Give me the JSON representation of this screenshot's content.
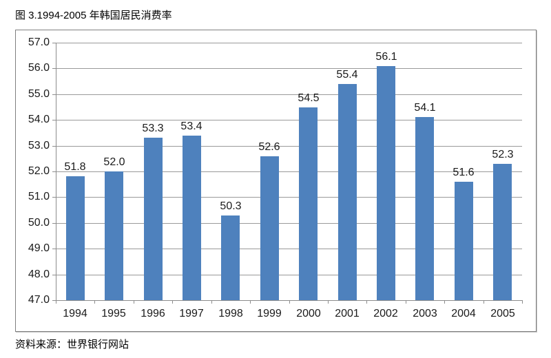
{
  "title": "图 3.1994-2005 年韩国居民消费率",
  "source": "资料来源：世界银行网站",
  "chart_data": {
    "type": "bar",
    "title": "图 3.1994-2005 年韩国居民消费率",
    "categories": [
      "1994",
      "1995",
      "1996",
      "1997",
      "1998",
      "1999",
      "2000",
      "2001",
      "2002",
      "2003",
      "2004",
      "2005"
    ],
    "values": [
      51.8,
      52.0,
      53.3,
      53.4,
      50.3,
      52.6,
      54.5,
      55.4,
      56.1,
      54.1,
      51.6,
      52.3
    ],
    "data_labels": [
      "51.8",
      "52.0",
      "53.3",
      "53.4",
      "50.3",
      "52.6",
      "54.5",
      "55.4",
      "56.1",
      "54.1",
      "51.6",
      "52.3"
    ],
    "xlabel": "",
    "ylabel": "",
    "ylim": [
      47.0,
      57.0
    ],
    "ytick_step": 1.0,
    "grid": true,
    "legend": false,
    "source": "资料来源：世界银行网站",
    "colors": {
      "bar": "#4E81BD",
      "gridline": "#999999",
      "axis": "#8C8C8C",
      "text": "#1A1A1A",
      "border": "#7F7F7F"
    }
  }
}
